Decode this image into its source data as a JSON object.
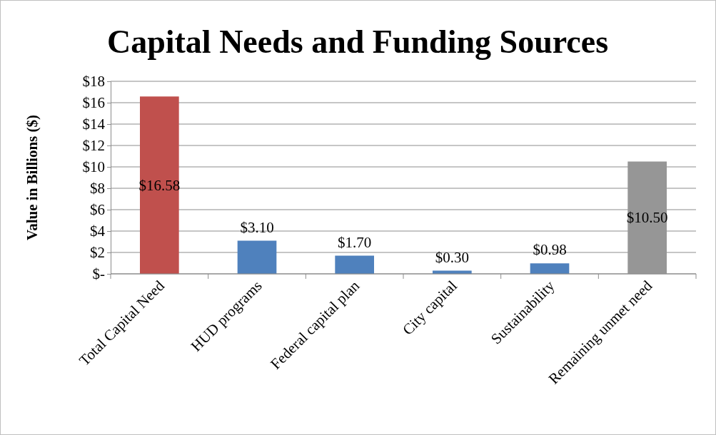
{
  "chart_data": {
    "type": "bar",
    "title": "Capital Needs and Funding Sources",
    "ylabel": "Value in Billions ($)",
    "categories": [
      "Total Capital Need",
      "HUD programs",
      "Federal capital plan",
      "City capital",
      "Sustainability",
      "Remaining unmet need"
    ],
    "values": [
      16.58,
      3.1,
      1.7,
      0.3,
      0.98,
      10.5
    ],
    "colors": [
      "#c0504d",
      "#4f81bd",
      "#4f81bd",
      "#4f81bd",
      "#4f81bd",
      "#969696"
    ],
    "value_labels": [
      "$16.58",
      "$3.10",
      "$1.70",
      "$0.30",
      "$0.98",
      "$10.50"
    ],
    "ylim": [
      0,
      18
    ],
    "yticks": [
      {
        "value": 0,
        "label": "$-"
      },
      {
        "value": 2,
        "label": "$2"
      },
      {
        "value": 4,
        "label": "$4"
      },
      {
        "value": 6,
        "label": "$6"
      },
      {
        "value": 8,
        "label": "$8"
      },
      {
        "value": 10,
        "label": "$10"
      },
      {
        "value": 12,
        "label": "$12"
      },
      {
        "value": 14,
        "label": "$14"
      },
      {
        "value": 16,
        "label": "$16"
      },
      {
        "value": 18,
        "label": "$18"
      }
    ],
    "grid": "y"
  }
}
